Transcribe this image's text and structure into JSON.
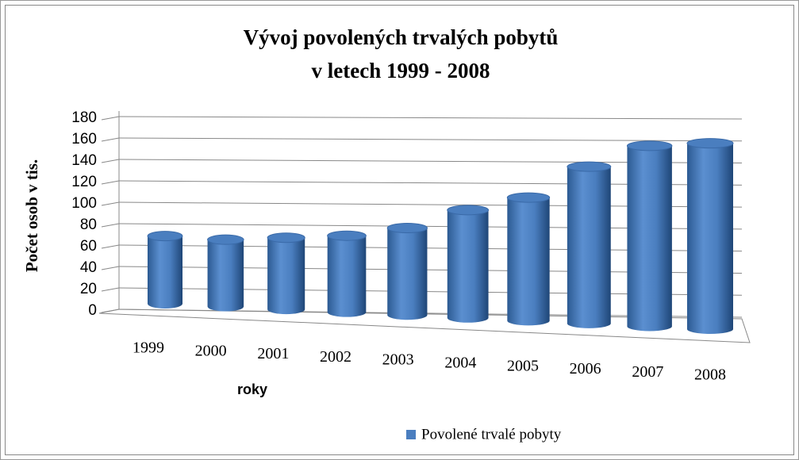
{
  "chart_data": {
    "type": "bar3d",
    "title": [
      "Vývoj povolených trvalých pobytů",
      "v letech 1999 - 2008"
    ],
    "x_label": "roky",
    "y_label": "Počet  osob v tis.",
    "categories": [
      "1999",
      "2000",
      "2001",
      "2002",
      "2003",
      "2004",
      "2005",
      "2006",
      "2007",
      "2008"
    ],
    "series": [
      {
        "name": "Povolené trvalé pobyty",
        "color": "#4a7ebf",
        "values": [
          61,
          60,
          64,
          68,
          77,
          95,
          108,
          137,
          157,
          161
        ]
      }
    ],
    "ylim": [
      0,
      180
    ],
    "yticks": [
      0,
      20,
      40,
      60,
      80,
      100,
      120,
      140,
      160,
      180
    ],
    "grid": true,
    "legend": "bottom"
  }
}
